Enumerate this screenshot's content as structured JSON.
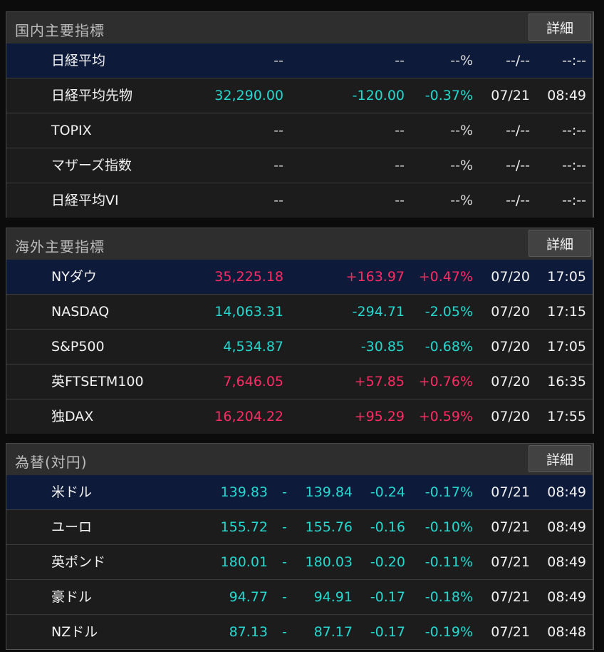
{
  "colors": {
    "up": "#ff2b63",
    "down": "#24d8cf",
    "neutral": "#d8d8d8",
    "selected_row": "#0d1a3a"
  },
  "domestic": {
    "title": "国内主要指標",
    "detail_label": "詳細",
    "rows": [
      {
        "name": "日経平均",
        "value": "--",
        "change": "--",
        "pct": "--%",
        "date": "--/--",
        "time": "--:--",
        "trend": "neutral"
      },
      {
        "name": "日経平均先物",
        "value": "32,290.00",
        "change": "-120.00",
        "pct": "-0.37%",
        "date": "07/21",
        "time": "08:49",
        "trend": "down"
      },
      {
        "name": "TOPIX",
        "value": "--",
        "change": "--",
        "pct": "--%",
        "date": "--/--",
        "time": "--:--",
        "trend": "neutral"
      },
      {
        "name": "マザーズ指数",
        "value": "--",
        "change": "--",
        "pct": "--%",
        "date": "--/--",
        "time": "--:--",
        "trend": "neutral"
      },
      {
        "name": "日経平均VI",
        "value": "--",
        "change": "--",
        "pct": "--%",
        "date": "--/--",
        "time": "--:--",
        "trend": "neutral"
      }
    ]
  },
  "overseas": {
    "title": "海外主要指標",
    "detail_label": "詳細",
    "rows": [
      {
        "name": "NYダウ",
        "value": "35,225.18",
        "change": "+163.97",
        "pct": "+0.47%",
        "date": "07/20",
        "time": "17:05",
        "trend": "up"
      },
      {
        "name": "NASDAQ",
        "value": "14,063.31",
        "change": "-294.71",
        "pct": "-2.05%",
        "date": "07/20",
        "time": "17:15",
        "trend": "down"
      },
      {
        "name": "S&P500",
        "value": "4,534.87",
        "change": "-30.85",
        "pct": "-0.68%",
        "date": "07/20",
        "time": "17:05",
        "trend": "down"
      },
      {
        "name": "英FTSETM100",
        "value": "7,646.05",
        "change": "+57.85",
        "pct": "+0.76%",
        "date": "07/20",
        "time": "16:35",
        "trend": "up"
      },
      {
        "name": "独DAX",
        "value": "16,204.22",
        "change": "+95.29",
        "pct": "+0.59%",
        "date": "07/20",
        "time": "17:55",
        "trend": "up"
      }
    ]
  },
  "fx": {
    "title": "為替(対円)",
    "detail_label": "詳細",
    "rows": [
      {
        "name": "米ドル",
        "bid": "139.83",
        "sep": "-",
        "ask": "139.84",
        "change": "-0.24",
        "pct": "-0.17%",
        "date": "07/21",
        "time": "08:49",
        "trend": "down"
      },
      {
        "name": "ユーロ",
        "bid": "155.72",
        "sep": "-",
        "ask": "155.76",
        "change": "-0.16",
        "pct": "-0.10%",
        "date": "07/21",
        "time": "08:49",
        "trend": "down"
      },
      {
        "name": "英ポンド",
        "bid": "180.01",
        "sep": "-",
        "ask": "180.03",
        "change": "-0.20",
        "pct": "-0.11%",
        "date": "07/21",
        "time": "08:49",
        "trend": "down"
      },
      {
        "name": "豪ドル",
        "bid": "94.77",
        "sep": "-",
        "ask": "94.91",
        "change": "-0.17",
        "pct": "-0.18%",
        "date": "07/21",
        "time": "08:49",
        "trend": "down"
      },
      {
        "name": "NZドル",
        "bid": "87.13",
        "sep": "-",
        "ask": "87.17",
        "change": "-0.17",
        "pct": "-0.19%",
        "date": "07/21",
        "time": "08:48",
        "trend": "down"
      }
    ]
  }
}
